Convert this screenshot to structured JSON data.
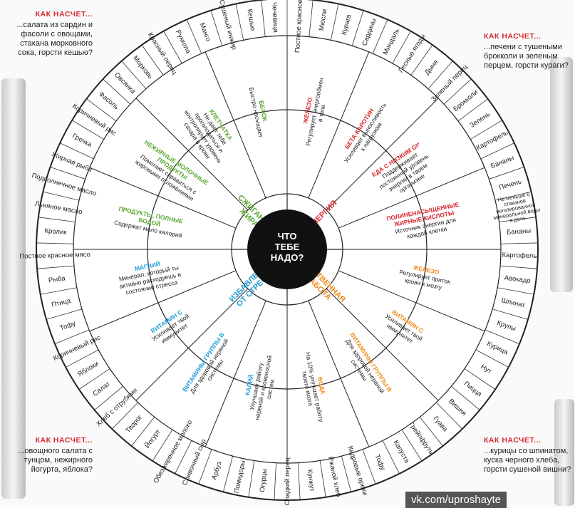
{
  "colors": {
    "red": "#d6282e",
    "orange": "#f08c1e",
    "green": "#5aa832",
    "blue": "#1e9cd7",
    "black": "#111"
  },
  "center": {
    "line1": "ЧТО",
    "line2": "ТЕБЕ",
    "line3": "НАДО?"
  },
  "segments": [
    {
      "label": "ЭНЕРГИЯ",
      "color": "#d6282e"
    },
    {
      "label": "УМСТВЕННАЯ РАБОТА",
      "color": "#f08c1e"
    },
    {
      "label": "ИЗБАВЛЕНИЕ ОТ СТРЕССА",
      "color": "#1e9cd7"
    },
    {
      "label": "СЖИГАНИЕ ЖИРА",
      "color": "#5aa832"
    }
  ],
  "nutrients": [
    {
      "name": "ЖЕЛЕЗО",
      "desc": "Регулирует энергообмен в теле",
      "color": "#d6282e"
    },
    {
      "name": "БЕТА-КАРОТИН",
      "desc": "Усиливает выносливость к нагрузкам",
      "color": "#d6282e"
    },
    {
      "name": "ЕДА С НИЗКИМ GI*",
      "desc": "Поддерживает постоянный уровень энергии в твоем организме",
      "color": "#d6282e"
    },
    {
      "name": "ПОЛИНЕНАСЫЩЕННЫЕ ЖИРНЫЕ КИСЛОТЫ",
      "desc": "Источник энергии для каждой клетки",
      "color": "#d6282e"
    },
    {
      "name": "ЖЕЛЕЗО",
      "desc": "Регулирует приток крови к мозгу",
      "color": "#f08c1e"
    },
    {
      "name": "ВИТАМИН С",
      "desc": "Усиливает твой иммунитет",
      "color": "#f08c1e"
    },
    {
      "name": "ВИТАМИНЫ ГРУППЫ В",
      "desc": "Для здоровой нервной системы",
      "color": "#f08c1e"
    },
    {
      "name": "ВОДА",
      "desc": "На 10% улучшает работу твоего мозга",
      "color": "#f08c1e"
    },
    {
      "name": "КАЛИЙ",
      "desc": "Улучшает работу нервной и кровеносной систем",
      "color": "#1e9cd7"
    },
    {
      "name": "ВИТАМИНЫ ГРУППЫ В",
      "desc": "Для здоровой нервной системы",
      "color": "#1e9cd7"
    },
    {
      "name": "ВИТАМИН С",
      "desc": "Усиливает твой иммунитет",
      "color": "#1e9cd7"
    },
    {
      "name": "МАГНИЙ",
      "desc": "Минерал, который ты активно расходуешь в состоянии стресса",
      "color": "#1e9cd7"
    },
    {
      "name": "ПРОДУКТЫ, ПОЛНЫЕ ВОДОЙ",
      "desc": "Содержат мало калорий",
      "color": "#5aa832"
    },
    {
      "name": "НЕЖИРНЫЕ МОЛОЧНЫЕ ПРОДУКТЫ",
      "desc": "Помогают справиться с жировыми отложениями",
      "color": "#5aa832"
    },
    {
      "name": "КЛЕТЧАТКА",
      "desc": "Не дает тебе проголодаться и контролирует уровень сахара в крови",
      "color": "#5aa832"
    },
    {
      "name": "БЕЛОК",
      "desc": "Быстро насыщает",
      "color": "#5aa832"
    }
  ],
  "foods": [
    "Постное красное мясо",
    "Мюсли",
    "Курага",
    "Сардины",
    "Миндаль",
    "Лесные ягоды",
    "Дыня",
    "Зеленый перец",
    "Брокколи",
    "Зелень",
    "Картофель",
    "Бананы",
    "Печень",
    "Не меньше 8 стаканов негазированной минеральной воды в день",
    "Бананы",
    "Картофель",
    "Авокадо",
    "Шпинат",
    "Крупы",
    "Курица",
    "Нут",
    "Пицца",
    "Вишня",
    "Гуава",
    "Грейпфруты",
    "Капуста",
    "Тофу",
    "Кедровые орехи",
    "Ржаной хлеб",
    "Кунжут",
    "Сладкий перец",
    "Огурцы",
    "Помидоры",
    "Арбуз",
    "Сливочный сыр",
    "Обезжиренное молоко",
    "Йогурт",
    "Творог",
    "Хлеб с отрубями",
    "Салат",
    "Яблоки",
    "Коричневый рис",
    "Тофу",
    "Птица",
    "Рыба",
    "Постное красное мясо",
    "Кролик",
    "Льняное масло",
    "Подсолнечное масло",
    "Жирная рыба",
    "Гречка",
    "Коричневый рис",
    "Фасоль",
    "Овсянка",
    "Морковь",
    "Красный перец",
    "Руккола",
    "Манго",
    "Сушеный инжир",
    "Кешью",
    "Чечевица"
  ],
  "corners": {
    "top_left": {
      "heading": "КАК НАСЧЕТ...",
      "text": "...салата из сардин и фасоли с овощами, стакана морковного сока, горсти кешью?"
    },
    "top_right": {
      "heading": "КАК НАСЧЕТ...",
      "text": "...печени с тушеными брокколи и зеленым перцем, горсти кураги?"
    },
    "bottom_left": {
      "heading": "КАК НАСЧЕТ...",
      "text": "...овощного салата с тунцом, нежирного йогурта, яблока?"
    },
    "bottom_right": {
      "heading": "КАК НАСЧЕТ...",
      "text": "...курицы со шпинатом, куска черного хлеба, горсти сушеной вишни?"
    }
  },
  "watermark": "vk.com/uproshayte"
}
